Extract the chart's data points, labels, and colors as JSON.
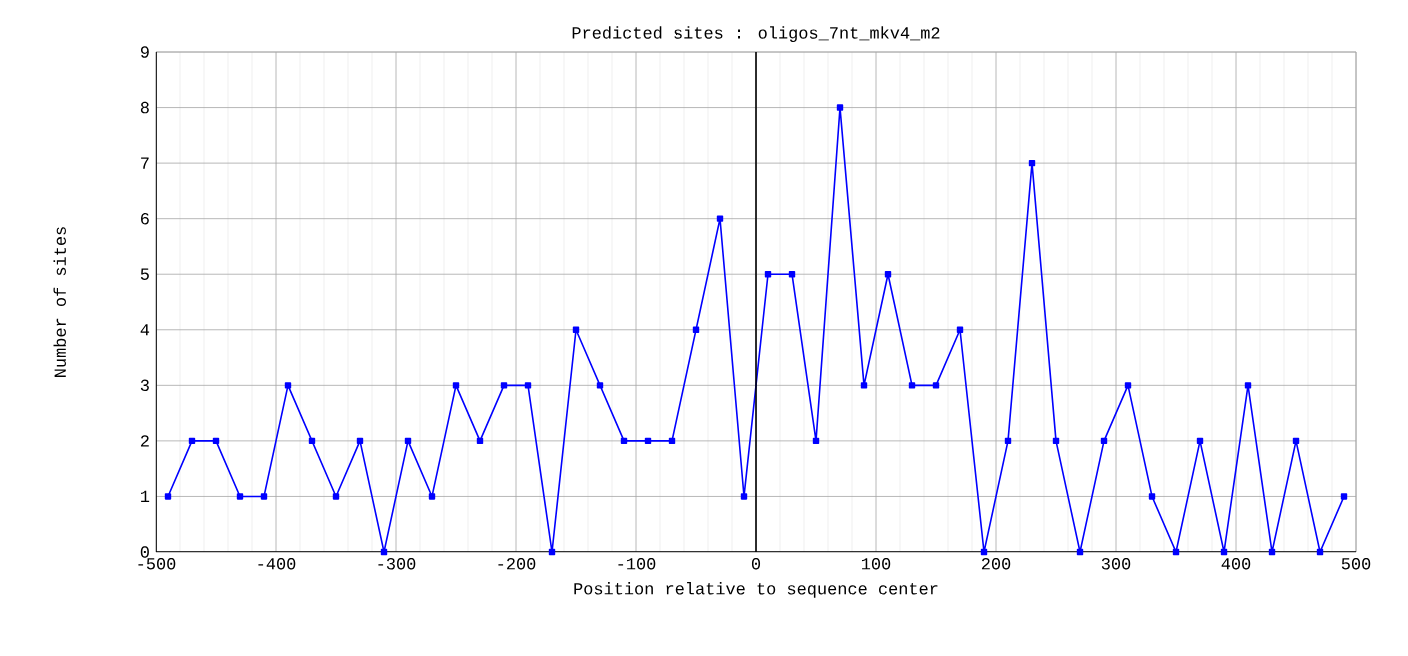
{
  "chart_data": {
    "type": "line",
    "title": "Predicted sites : oligos_7nt_mkv4_m2",
    "xlabel": "Position relative to sequence center",
    "ylabel": "Number of sites",
    "x": [
      -490,
      -470,
      -450,
      -430,
      -410,
      -390,
      -370,
      -350,
      -330,
      -310,
      -290,
      -270,
      -250,
      -230,
      -210,
      -190,
      -170,
      -150,
      -130,
      -110,
      -90,
      -70,
      -50,
      -30,
      -10,
      10,
      30,
      50,
      70,
      90,
      110,
      130,
      150,
      170,
      190,
      210,
      230,
      250,
      270,
      290,
      310,
      330,
      350,
      370,
      390,
      410,
      430,
      450,
      470,
      490
    ],
    "series": [
      {
        "color": "#0000ff",
        "values": [
          1,
          2,
          2,
          1,
          1,
          3,
          2,
          1,
          2,
          0,
          2,
          1,
          3,
          2,
          3,
          3,
          0,
          4,
          3,
          2,
          2,
          2,
          4,
          6,
          1,
          5,
          5,
          2,
          8,
          3,
          5,
          3,
          3,
          4,
          0,
          2,
          7,
          2,
          0,
          2,
          3,
          1,
          0,
          2,
          0,
          3,
          0,
          2,
          0,
          1
        ]
      }
    ],
    "xlim": [
      -500,
      500
    ],
    "xticks": [
      -500,
      -400,
      -300,
      -200,
      -100,
      0,
      100,
      200,
      300,
      400,
      500
    ],
    "ylim": [
      0,
      9
    ],
    "yticks": [
      0,
      1,
      2,
      3,
      4,
      5,
      6,
      7,
      8,
      9
    ],
    "ref_lines": [
      {
        "axis": "x",
        "value": 0,
        "color": "#000000"
      }
    ],
    "grid": true,
    "marker": "square",
    "line_style": "solid"
  }
}
